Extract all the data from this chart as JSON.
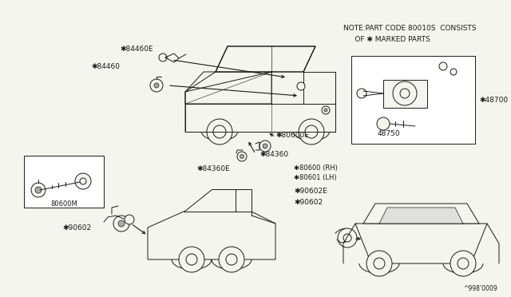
{
  "background_color": "#f5f5f0",
  "line_color": "#1a1a1a",
  "text_color": "#1a1a1a",
  "figure_width": 6.4,
  "figure_height": 3.72,
  "dpi": 100,
  "note_line1": "NOTE:PART CODE 80010S  CONSISTS",
  "note_line2": "     OF ✱ MARKED PARTS",
  "footer": "^998‘0009",
  "label_84460E": "✱84460E",
  "label_84460": "✱84460",
  "label_80600E": "✱80600E",
  "label_84360": "✱84360",
  "label_84360E": "✱84360E",
  "label_80600RH": "✱80600 (RH)",
  "label_80601LH": "✱80601 (LH)",
  "label_80600M": "80600M",
  "label_48700": "✱48700",
  "label_48750": "48750",
  "label_90602E": "✱90602E",
  "label_90602_c": "✱90602",
  "label_90602_l": "✱90602"
}
